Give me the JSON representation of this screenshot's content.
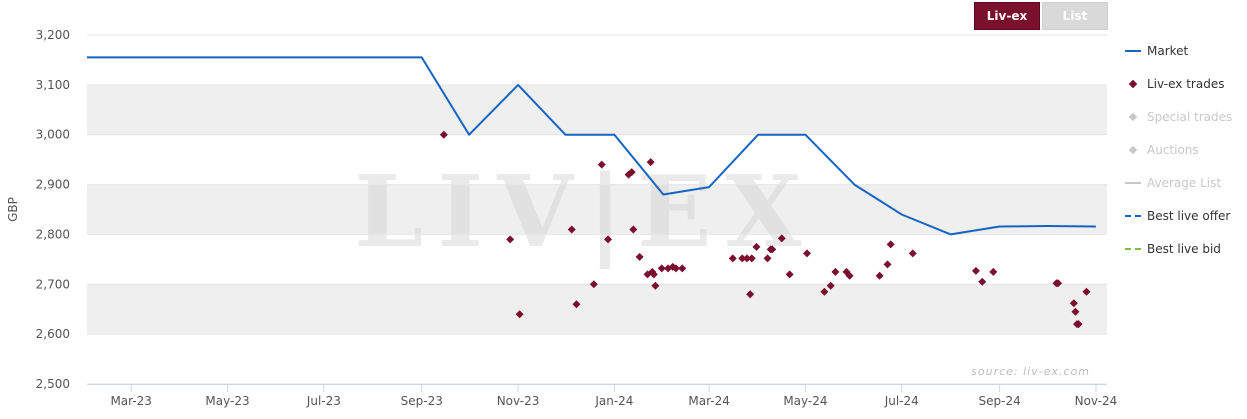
{
  "tabs": [
    {
      "label": "Liv-ex",
      "active": true
    },
    {
      "label": "List",
      "active": false
    }
  ],
  "legend": [
    {
      "label": "Market",
      "kind": "line",
      "color": "#1565c0",
      "muted": false
    },
    {
      "label": "Liv-ex trades",
      "kind": "diamond",
      "color": "#7a0f2e",
      "muted": false
    },
    {
      "label": "Special trades",
      "kind": "diamond",
      "color": "#c8c8c8",
      "muted": true
    },
    {
      "label": "Auctions",
      "kind": "diamond",
      "color": "#c8c8c8",
      "muted": true
    },
    {
      "label": "Average List",
      "kind": "line",
      "color": "#c8c8c8",
      "muted": true
    },
    {
      "label": "Best live offer",
      "kind": "dash",
      "color": "#1565c0",
      "muted": false
    },
    {
      "label": "Best live bid",
      "kind": "dash",
      "color": "#7cc242",
      "muted": false
    }
  ],
  "watermark": "LIV|EX",
  "source_text": "source: liv-ex.com",
  "colors": {
    "market": "#1565c0",
    "trades": "#7a0f2e",
    "band": "#efefef",
    "axis": "#ccd6eb",
    "tick_text": "#555555"
  },
  "chart_data": {
    "type": "line",
    "ylabel": "GBP",
    "ylim": [
      2500,
      3200
    ],
    "yticks": [
      2500,
      2600,
      2700,
      2800,
      2900,
      3000,
      3100,
      3200
    ],
    "ytick_labels": [
      "2,500",
      "2,600",
      "2,700",
      "2,800",
      "2,900",
      "3,000",
      "3,100",
      "3,200"
    ],
    "xlim": [
      "2023-02-01",
      "2024-11-08"
    ],
    "xticks": [
      "2023-03-01",
      "2023-05-01",
      "2023-07-01",
      "2023-09-01",
      "2023-11-01",
      "2024-01-01",
      "2024-03-01",
      "2024-05-01",
      "2024-07-01",
      "2024-09-01",
      "2024-11-01"
    ],
    "xtick_labels": [
      "Mar-23",
      "May-23",
      "Jul-23",
      "Sep-23",
      "Nov-23",
      "Jan-24",
      "Mar-24",
      "May-24",
      "Jul-24",
      "Sep-24",
      "Nov-24"
    ],
    "grid": true,
    "legend_position": "right",
    "series": [
      {
        "name": "Market",
        "type": "line",
        "points": [
          [
            "2023-02-01",
            3155
          ],
          [
            "2023-09-01",
            3155
          ],
          [
            "2023-10-01",
            3000
          ],
          [
            "2023-11-01",
            3100
          ],
          [
            "2023-12-01",
            3000
          ],
          [
            "2024-01-01",
            3000
          ],
          [
            "2024-02-01",
            2880
          ],
          [
            "2024-03-01",
            2895
          ],
          [
            "2024-04-01",
            3000
          ],
          [
            "2024-05-01",
            3000
          ],
          [
            "2024-06-01",
            2900
          ],
          [
            "2024-07-01",
            2840
          ],
          [
            "2024-08-01",
            2800
          ],
          [
            "2024-09-01",
            2816
          ],
          [
            "2024-10-01",
            2817
          ],
          [
            "2024-11-01",
            2816
          ]
        ]
      },
      {
        "name": "Liv-ex trades",
        "type": "scatter",
        "points": [
          [
            "2023-09-15",
            3000
          ],
          [
            "2023-10-27",
            2790
          ],
          [
            "2023-11-02",
            2640
          ],
          [
            "2023-12-05",
            2810
          ],
          [
            "2023-12-08",
            2660
          ],
          [
            "2023-12-19",
            2700
          ],
          [
            "2023-12-24",
            2940
          ],
          [
            "2023-12-28",
            2790
          ],
          [
            "2024-01-10",
            2920
          ],
          [
            "2024-01-12",
            2925
          ],
          [
            "2024-01-13",
            2810
          ],
          [
            "2024-01-17",
            2755
          ],
          [
            "2024-01-22",
            2720
          ],
          [
            "2024-01-24",
            2945
          ],
          [
            "2024-01-25",
            2725
          ],
          [
            "2024-01-26",
            2720
          ],
          [
            "2024-01-27",
            2697
          ],
          [
            "2024-01-31",
            2732
          ],
          [
            "2024-02-04",
            2732
          ],
          [
            "2024-02-07",
            2735
          ],
          [
            "2024-02-09",
            2732
          ],
          [
            "2024-02-13",
            2732
          ],
          [
            "2024-03-16",
            2752
          ],
          [
            "2024-03-22",
            2752
          ],
          [
            "2024-03-25",
            2752
          ],
          [
            "2024-03-27",
            2680
          ],
          [
            "2024-03-28",
            2752
          ],
          [
            "2024-03-31",
            2775
          ],
          [
            "2024-04-07",
            2752
          ],
          [
            "2024-04-09",
            2770
          ],
          [
            "2024-04-10",
            2770
          ],
          [
            "2024-04-16",
            2792
          ],
          [
            "2024-04-21",
            2720
          ],
          [
            "2024-05-02",
            2762
          ],
          [
            "2024-05-13",
            2685
          ],
          [
            "2024-05-17",
            2697
          ],
          [
            "2024-05-20",
            2725
          ],
          [
            "2024-05-27",
            2725
          ],
          [
            "2024-05-29",
            2717
          ],
          [
            "2024-06-17",
            2717
          ],
          [
            "2024-06-22",
            2740
          ],
          [
            "2024-06-24",
            2780
          ],
          [
            "2024-07-08",
            2762
          ],
          [
            "2024-08-17",
            2727
          ],
          [
            "2024-08-21",
            2705
          ],
          [
            "2024-08-28",
            2725
          ],
          [
            "2024-10-07",
            2702
          ],
          [
            "2024-10-08",
            2702
          ],
          [
            "2024-10-18",
            2662
          ],
          [
            "2024-10-19",
            2645
          ],
          [
            "2024-10-20",
            2620
          ],
          [
            "2024-10-21",
            2620
          ],
          [
            "2024-10-26",
            2685
          ]
        ]
      }
    ]
  }
}
